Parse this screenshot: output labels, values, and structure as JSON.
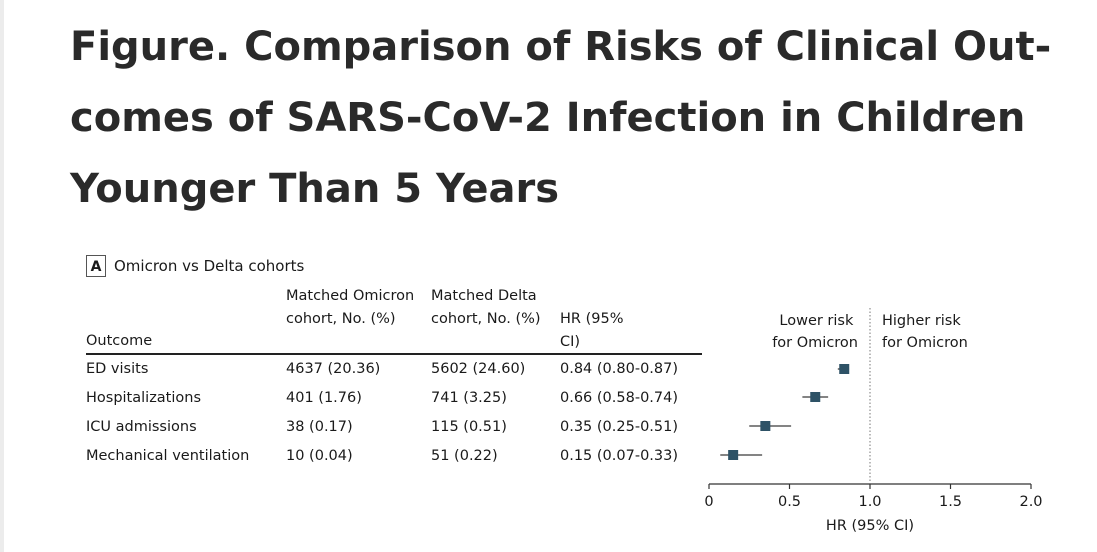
{
  "title": "Figure.  Comparison of Risks of Clinical Out-comes of SARS-CoV-2 Infection in Children Younger Than 5 Years",
  "panel": {
    "letter": "A",
    "label": "Omicron vs Delta cohorts"
  },
  "table": {
    "headers": {
      "outcome": "Outcome",
      "omicron": "Matched Omicron cohort, No. (%)",
      "delta": "Matched Delta cohort, No. (%)",
      "hr": "HR (95% CI)"
    },
    "rows": [
      {
        "outcome": "ED visits",
        "omicron": "4637 (20.36)",
        "delta": "5602 (24.60)",
        "hr": "0.84 (0.80-0.87)"
      },
      {
        "outcome": "Hospitalizations",
        "omicron": "401 (1.76)",
        "delta": "741 (3.25)",
        "hr": "0.66 (0.58-0.74)"
      },
      {
        "outcome": "ICU admissions",
        "omicron": "38 (0.17)",
        "delta": "115 (0.51)",
        "hr": "0.35 (0.25-0.51)"
      },
      {
        "outcome": "Mechanical ventilation",
        "omicron": "10 (0.04)",
        "delta": "51 (0.22)",
        "hr": "0.15 (0.07-0.33)"
      }
    ]
  },
  "chart_data": {
    "type": "scatter",
    "xlabel": "HR (95% CI)",
    "xlim": [
      0,
      2.0
    ],
    "xticks": [
      "0",
      "0.5",
      "1.0",
      "1.5",
      "2.0"
    ],
    "reference_line": 1.0,
    "annotations": {
      "lower": "Lower risk for Omicron",
      "higher": "Higher risk for Omicron"
    },
    "categories": [
      "ED visits",
      "Hospitalizations",
      "ICU admissions",
      "Mechanical ventilation"
    ],
    "hr": [
      0.84,
      0.66,
      0.35,
      0.15
    ],
    "ci_low": [
      0.8,
      0.58,
      0.25,
      0.07
    ],
    "ci_high": [
      0.87,
      0.74,
      0.51,
      0.33
    ],
    "marker_color": "#2e5266"
  }
}
